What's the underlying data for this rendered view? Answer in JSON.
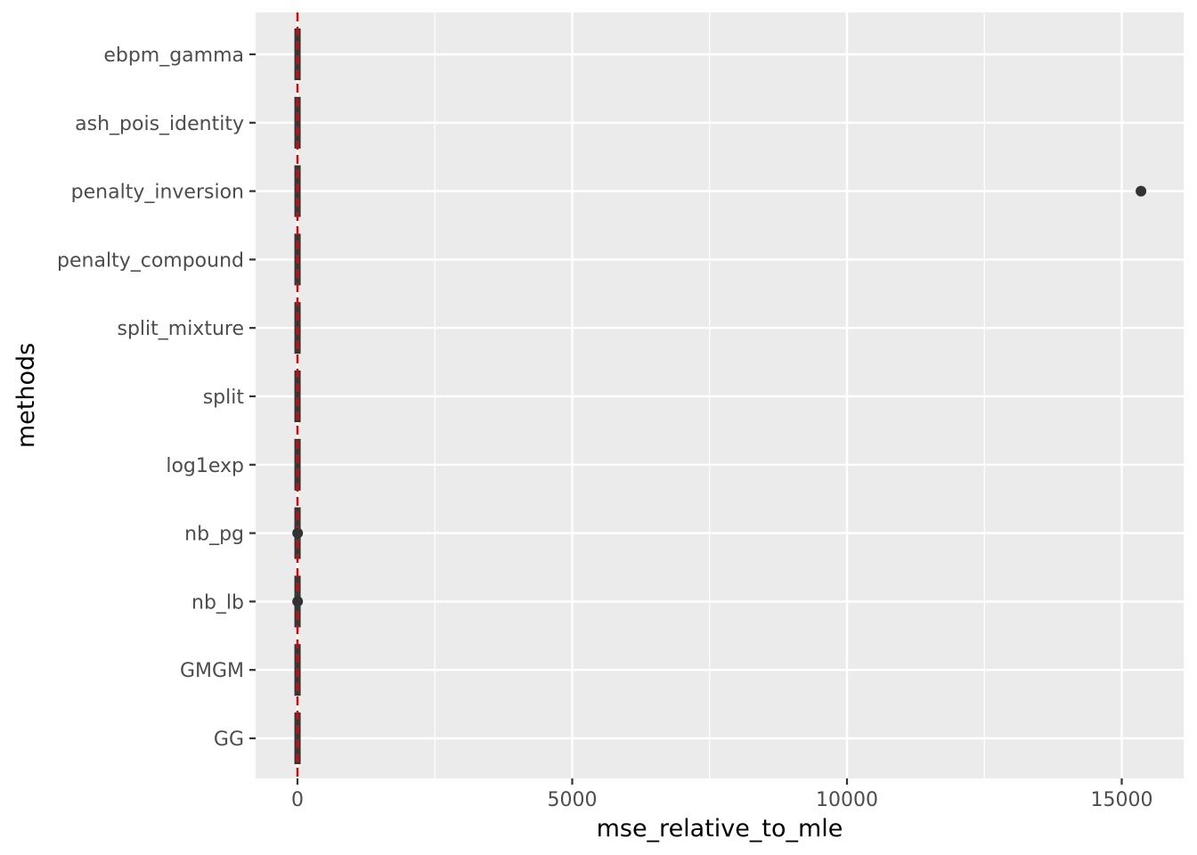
{
  "chart_data": {
    "type": "boxplot",
    "orientation": "horizontal",
    "title": "",
    "xlabel": "mse_relative_to_mle",
    "ylabel": "methods",
    "xlim": [
      -750,
      16100
    ],
    "x_ticks": [
      0,
      5000,
      10000,
      15000
    ],
    "x_tick_labels": [
      "0",
      "5000",
      "10000",
      "15000"
    ],
    "x_minor_ticks": [
      2500,
      7500,
      12500
    ],
    "grid": true,
    "panel_background": "#ebebeb",
    "grid_color": "#ffffff",
    "box_color": "#333333",
    "reference_line": {
      "x": 0,
      "color": "#e60000",
      "style": "dashed"
    },
    "categories": [
      "ebpm_gamma",
      "ash_pois_identity",
      "penalty_inversion",
      "penalty_compound",
      "split_mixture",
      "split",
      "log1exp",
      "nb_pg",
      "nb_lb",
      "GMGM",
      "GG"
    ],
    "boxes": [
      {
        "method": "ebpm_gamma",
        "min": 0.6,
        "q1": 0.85,
        "median": 0.95,
        "q3": 1.0,
        "max": 1.1
      },
      {
        "method": "ash_pois_identity",
        "min": 0.6,
        "q1": 0.85,
        "median": 0.95,
        "q3": 1.0,
        "max": 1.1
      },
      {
        "method": "penalty_inversion",
        "min": 0.6,
        "q1": 0.85,
        "median": 0.95,
        "q3": 1.0,
        "max": 1.1
      },
      {
        "method": "penalty_compound",
        "min": 0.6,
        "q1": 0.85,
        "median": 0.95,
        "q3": 1.0,
        "max": 1.1
      },
      {
        "method": "split_mixture",
        "min": 0.6,
        "q1": 0.85,
        "median": 0.95,
        "q3": 1.0,
        "max": 1.1
      },
      {
        "method": "split",
        "min": 0.6,
        "q1": 0.85,
        "median": 0.95,
        "q3": 1.0,
        "max": 1.1
      },
      {
        "method": "log1exp",
        "min": 0.6,
        "q1": 0.85,
        "median": 0.95,
        "q3": 1.0,
        "max": 1.1
      },
      {
        "method": "nb_pg",
        "min": 0.6,
        "q1": 0.85,
        "median": 0.95,
        "q3": 1.0,
        "max": 1.1
      },
      {
        "method": "nb_lb",
        "min": 0.6,
        "q1": 0.85,
        "median": 0.95,
        "q3": 1.0,
        "max": 1.1
      },
      {
        "method": "GMGM",
        "min": 0.6,
        "q1": 0.85,
        "median": 0.95,
        "q3": 1.0,
        "max": 1.1
      },
      {
        "method": "GG",
        "min": 0.6,
        "q1": 0.85,
        "median": 0.95,
        "q3": 1.0,
        "max": 1.1
      }
    ],
    "outliers": [
      {
        "method": "penalty_inversion",
        "x": 15350
      },
      {
        "method": "nb_pg",
        "x": 3
      },
      {
        "method": "nb_lb",
        "x": 3
      }
    ]
  }
}
